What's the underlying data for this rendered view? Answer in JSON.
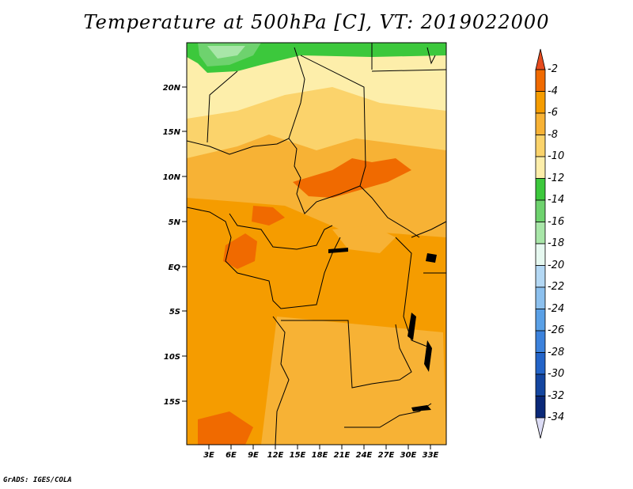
{
  "title": "Temperature at 500hPa [C], VT: 2019022000",
  "credit": "GrADS: IGES/COLA",
  "axes": {
    "lat_labels": [
      "20N",
      "15N",
      "10N",
      "5N",
      "EQ",
      "5S",
      "10S",
      "15S"
    ],
    "lon_labels": [
      "3E",
      "6E",
      "9E",
      "12E",
      "15E",
      "18E",
      "21E",
      "24E",
      "27E",
      "30E",
      "33E"
    ]
  },
  "colorbar": {
    "labels": [
      "-2",
      "-4",
      "-6",
      "-8",
      "-10",
      "-12",
      "-14",
      "-16",
      "-18",
      "-20",
      "-22",
      "-24",
      "-26",
      "-28",
      "-30",
      "-32",
      "-34"
    ],
    "colors": [
      "#e64b1e",
      "#f06a00",
      "#f59c00",
      "#f7b235",
      "#fbd36b",
      "#fdeeaa",
      "#3cc83c",
      "#6ed26e",
      "#a8e6a8",
      "#e6f8f0",
      "#b4d8f4",
      "#8cc0ee",
      "#5aa0e6",
      "#3c82dc",
      "#2364c8",
      "#1446a0",
      "#0a2878",
      "#dcdcf5"
    ]
  },
  "map": {
    "region": "Central Africa",
    "variable": "Temperature at 500hPa",
    "units": "C"
  }
}
